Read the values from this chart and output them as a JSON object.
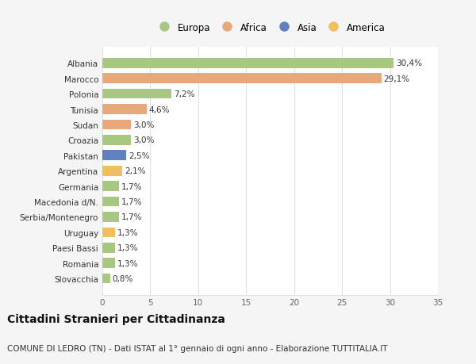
{
  "countries": [
    "Albania",
    "Marocco",
    "Polonia",
    "Tunisia",
    "Sudan",
    "Croazia",
    "Pakistan",
    "Argentina",
    "Germania",
    "Macedonia d/N.",
    "Serbia/Montenegro",
    "Uruguay",
    "Paesi Bassi",
    "Romania",
    "Slovacchia"
  ],
  "values": [
    30.4,
    29.1,
    7.2,
    4.6,
    3.0,
    3.0,
    2.5,
    2.1,
    1.7,
    1.7,
    1.7,
    1.3,
    1.3,
    1.3,
    0.8
  ],
  "labels": [
    "30,4%",
    "29,1%",
    "7,2%",
    "4,6%",
    "3,0%",
    "3,0%",
    "2,5%",
    "2,1%",
    "1,7%",
    "1,7%",
    "1,7%",
    "1,3%",
    "1,3%",
    "1,3%",
    "0,8%"
  ],
  "continents": [
    "Europa",
    "Africa",
    "Europa",
    "Africa",
    "Africa",
    "Europa",
    "Asia",
    "America",
    "Europa",
    "Europa",
    "Europa",
    "America",
    "Europa",
    "Europa",
    "Europa"
  ],
  "continent_colors": {
    "Europa": "#a8c882",
    "Africa": "#e8a87c",
    "Asia": "#6080c0",
    "America": "#f0c060"
  },
  "legend_order": [
    "Europa",
    "Africa",
    "Asia",
    "America"
  ],
  "background_color": "#f5f5f5",
  "plot_bg_color": "#ffffff",
  "title_line1": "Cittadini Stranieri per Cittadinanza",
  "title_line2": "COMUNE DI LEDRO (TN) - Dati ISTAT al 1° gennaio di ogni anno - Elaborazione TUTTITALIA.IT",
  "xlim": [
    0,
    35
  ],
  "xticks": [
    0,
    5,
    10,
    15,
    20,
    25,
    30,
    35
  ],
  "grid_color": "#e0e0e0",
  "bar_height": 0.65,
  "label_fontsize": 7.5,
  "tick_fontsize": 7.5,
  "title1_fontsize": 10,
  "title2_fontsize": 7.5,
  "legend_fontsize": 8.5
}
